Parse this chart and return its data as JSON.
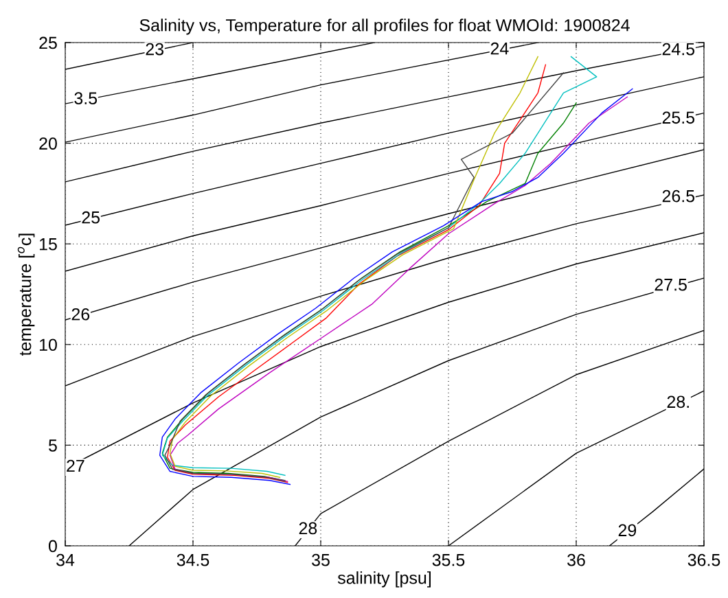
{
  "chart_data": {
    "type": "line",
    "title": "Salinity vs, Temperature for all profiles for float WMOId: 1900824",
    "xlabel": "salinity [psu]",
    "ylabel": "temperature [$^{o}$c]",
    "xlim": [
      34,
      36.5
    ],
    "xticks": [
      34,
      34.5,
      35,
      35.5,
      36,
      36.5
    ],
    "ylim": [
      0,
      25
    ],
    "yticks": [
      0,
      5,
      10,
      15,
      20,
      25
    ],
    "grid": true,
    "marker": "none",
    "line_style": "solid",
    "series": [
      {
        "color": "#000000",
        "x": [
          34,
          34.5
        ],
        "values": [
          23.67,
          25
        ]
      },
      {
        "color": "#000000",
        "x": [
          34,
          34.5,
          35.21
        ],
        "values": [
          21.96,
          23.2,
          25
        ]
      },
      {
        "color": "#000000",
        "x": [
          34,
          34.5,
          35,
          35.85
        ],
        "values": [
          20.05,
          21.4,
          22.9,
          25
        ]
      },
      {
        "color": "#000000",
        "x": [
          34,
          34.5,
          35,
          35.5,
          36,
          36.5
        ],
        "values": [
          18.08,
          19.6,
          21.0,
          22.3,
          23.6,
          24.83
        ]
      },
      {
        "color": "#000000",
        "x": [
          34,
          34.5,
          35,
          35.5,
          36,
          36.5
        ],
        "values": [
          15.93,
          17.5,
          19.0,
          20.5,
          21.9,
          23.3
        ]
      },
      {
        "color": "#000000",
        "x": [
          34,
          34.5,
          35,
          35.5,
          36,
          36.5
        ],
        "values": [
          13.64,
          15.4,
          16.9,
          18.5,
          20.0,
          21.5
        ]
      },
      {
        "color": "#000000",
        "x": [
          34,
          34.5,
          35,
          35.5,
          36,
          36.5
        ],
        "values": [
          11.22,
          13.1,
          14.8,
          16.5,
          18.1,
          19.68
        ]
      },
      {
        "color": "#000000",
        "x": [
          34,
          34.5,
          35,
          35.5,
          36,
          36.5
        ],
        "values": [
          7.95,
          10.4,
          12.4,
          14.3,
          16.0,
          17.43
        ]
      },
      {
        "color": "#000000",
        "x": [
          34,
          34.5,
          35,
          35.5,
          36,
          36.5
        ],
        "values": [
          3.85,
          7.1,
          9.9,
          12.1,
          14.0,
          15.55
        ]
      },
      {
        "color": "#000000",
        "x": [
          34.25,
          34.5,
          35,
          35.5,
          36,
          36.5
        ],
        "values": [
          0,
          2.8,
          6.4,
          9.2,
          11.5,
          13.3
        ]
      },
      {
        "color": "#000000",
        "x": [
          34.9,
          35,
          35.5,
          36,
          36.5
        ],
        "values": [
          0,
          1.6,
          5.2,
          8.5,
          10.7
        ]
      },
      {
        "color": "#000000",
        "x": [
          35.5,
          36,
          36.5
        ],
        "values": [
          0,
          4.6,
          7.7
        ]
      },
      {
        "color": "#000000",
        "x": [
          36.13,
          36.3,
          36.5
        ],
        "values": [
          0,
          1.7,
          3.82
        ]
      },
      {
        "color": "#0000ff",
        "x": [
          34.88,
          34.8,
          34.65,
          34.5,
          34.41,
          34.37,
          34.38,
          34.43,
          34.53,
          34.68,
          34.83,
          34.98,
          35.13,
          35.28,
          35.48,
          35.63,
          35.75,
          35.85,
          35.95,
          36.1,
          36.22
        ],
        "values": [
          3.05,
          3.25,
          3.4,
          3.45,
          3.7,
          4.5,
          5.4,
          6.3,
          7.6,
          9.1,
          10.5,
          11.8,
          13.3,
          14.6,
          15.9,
          17.1,
          17.6,
          18.3,
          19.5,
          21.5,
          22.7
        ]
      },
      {
        "color": "#008000",
        "x": [
          34.86,
          34.78,
          34.64,
          34.5,
          34.41,
          34.38,
          34.4,
          34.46,
          34.56,
          34.71,
          34.86,
          35.01,
          35.16,
          35.31,
          35.5,
          35.65,
          35.8,
          35.85,
          35.95,
          36.0
        ],
        "values": [
          3.25,
          3.45,
          3.6,
          3.65,
          3.85,
          4.6,
          5.4,
          6.3,
          7.6,
          9.1,
          10.5,
          11.8,
          13.3,
          14.6,
          15.9,
          17.1,
          18.0,
          19.5,
          21.0,
          22.0
        ]
      },
      {
        "color": "#ff0000",
        "x": [
          34.87,
          34.8,
          34.66,
          34.5,
          34.43,
          34.4,
          34.41,
          34.47,
          34.6,
          34.75,
          34.88,
          35.02,
          35.15,
          35.3,
          35.5,
          35.62,
          35.7,
          35.72,
          35.85,
          35.88
        ],
        "values": [
          3.15,
          3.35,
          3.5,
          3.55,
          3.75,
          4.4,
          5.2,
          6.0,
          7.4,
          8.8,
          10.0,
          11.3,
          13.0,
          14.4,
          15.7,
          16.9,
          18.5,
          20.0,
          22.5,
          23.9
        ]
      },
      {
        "color": "#00bfbf",
        "x": [
          34.86,
          34.79,
          34.65,
          34.5,
          34.42,
          34.38,
          34.4,
          34.46,
          34.56,
          34.71,
          34.86,
          35.01,
          35.16,
          35.31,
          35.5,
          35.62,
          35.7,
          35.8,
          35.95,
          36.08,
          35.98
        ],
        "values": [
          3.5,
          3.7,
          3.85,
          3.88,
          4.0,
          4.5,
          5.35,
          6.2,
          7.5,
          9.0,
          10.4,
          11.7,
          13.2,
          14.5,
          15.8,
          17.0,
          18.0,
          19.5,
          22.5,
          23.3,
          24.3
        ]
      },
      {
        "color": "#bf00bf",
        "x": [
          34.87,
          34.8,
          34.65,
          34.5,
          34.43,
          34.41,
          34.44,
          34.48,
          34.6,
          34.8,
          35.0,
          35.2,
          35.35,
          35.5,
          35.68,
          35.8,
          35.9,
          36.05,
          36.2
        ],
        "values": [
          3.2,
          3.4,
          3.55,
          3.6,
          3.8,
          4.5,
          5.1,
          5.5,
          6.8,
          8.6,
          10.3,
          12.0,
          13.8,
          15.5,
          17.0,
          17.9,
          19.0,
          21.0,
          22.3
        ]
      },
      {
        "color": "#bfbf00",
        "x": [
          34.84,
          34.77,
          34.63,
          34.5,
          34.43,
          34.41,
          34.42,
          34.47,
          34.57,
          34.72,
          34.87,
          35.02,
          35.17,
          35.32,
          35.52,
          35.6,
          35.68,
          35.78,
          35.85
        ],
        "values": [
          3.4,
          3.6,
          3.72,
          3.75,
          3.95,
          4.6,
          5.3,
          6.15,
          7.45,
          8.95,
          10.35,
          11.65,
          13.15,
          14.45,
          15.75,
          18.2,
          20.5,
          22.5,
          24.3
        ]
      },
      {
        "color": "#404040",
        "x": [
          34.86,
          34.79,
          34.65,
          34.5,
          34.42,
          34.39,
          34.41,
          34.45,
          34.55,
          34.7,
          34.85,
          35.0,
          35.15,
          35.3,
          35.5,
          35.6,
          35.55,
          35.75,
          35.95
        ],
        "values": [
          3.2,
          3.4,
          3.55,
          3.6,
          3.8,
          4.5,
          5.0,
          6.2,
          7.5,
          9.0,
          10.4,
          11.7,
          13.2,
          14.5,
          15.8,
          18.3,
          19.2,
          20.5,
          23.5
        ]
      }
    ],
    "annotations": [
      {
        "text": "23",
        "x": 34.35,
        "y": 24.6
      },
      {
        "text": "3.5",
        "x": 34.08,
        "y": 22.16
      },
      {
        "text": "24",
        "x": 35.7,
        "y": 24.63
      },
      {
        "text": "24.5",
        "x": 36.4,
        "y": 24.6
      },
      {
        "text": "25",
        "x": 34.1,
        "y": 16.24
      },
      {
        "text": "25.5",
        "x": 36.4,
        "y": 21.2
      },
      {
        "text": "26",
        "x": 34.06,
        "y": 11.43
      },
      {
        "text": "26.5",
        "x": 36.4,
        "y": 17.3
      },
      {
        "text": "27",
        "x": 34.04,
        "y": 3.9
      },
      {
        "text": "27.5",
        "x": 36.37,
        "y": 12.9
      },
      {
        "text": "28",
        "x": 34.95,
        "y": 0.8
      },
      {
        "text": "28.",
        "x": 36.4,
        "y": 7.08
      },
      {
        "text": "29",
        "x": 36.2,
        "y": 0.7
      }
    ]
  }
}
